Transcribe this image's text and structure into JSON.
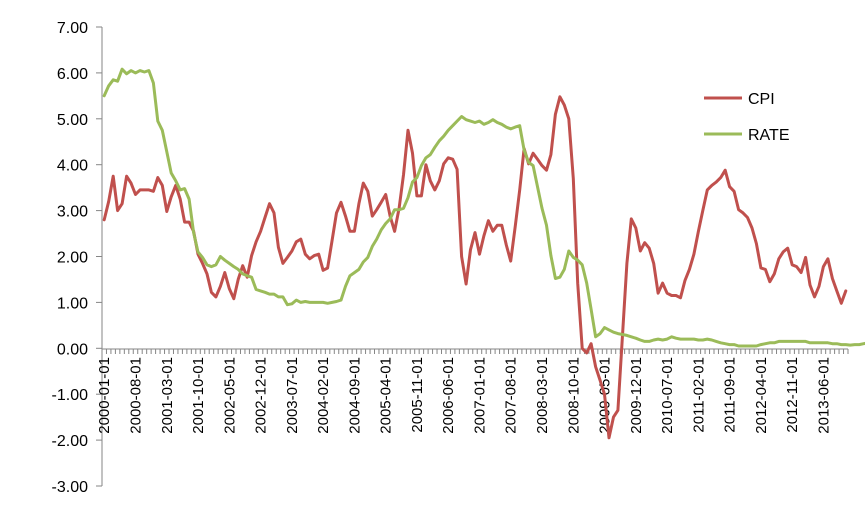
{
  "chart_data": {
    "type": "line",
    "title": "",
    "xlabel": "",
    "ylabel": "",
    "ylim": [
      -3,
      7
    ],
    "yticks": [
      "7.00",
      "6.00",
      "5.00",
      "4.00",
      "3.00",
      "2.00",
      "1.00",
      "0.00",
      "-1.00",
      "-2.00",
      "-3.00"
    ],
    "x_start": "2000-01",
    "x_tick_labels": [
      "2000-01-01",
      "2000-08-01",
      "2001-03-01",
      "2001-10-01",
      "2002-05-01",
      "2002-12-01",
      "2003-07-01",
      "2004-02-01",
      "2004-09-01",
      "2005-04-01",
      "2005-11-01",
      "2006-06-01",
      "2007-01-01",
      "2007-08-01",
      "2008-03-01",
      "2008-10-01",
      "2009-05-01",
      "2009-12-01",
      "2010-07-01",
      "2011-02-01",
      "2011-09-01",
      "2012-04-01",
      "2012-11-01",
      "2013-06-01"
    ],
    "legend_position": "right",
    "grid": false,
    "series": [
      {
        "name": "CPI",
        "color": "#c0504d",
        "values": [
          2.8,
          3.2,
          3.75,
          3.0,
          3.15,
          3.75,
          3.6,
          3.35,
          3.45,
          3.45,
          3.45,
          3.42,
          3.72,
          3.55,
          2.98,
          3.3,
          3.55,
          3.25,
          2.75,
          2.75,
          2.55,
          2.05,
          1.85,
          1.62,
          1.22,
          1.12,
          1.35,
          1.65,
          1.3,
          1.08,
          1.5,
          1.8,
          1.55,
          2.02,
          2.32,
          2.55,
          2.85,
          3.15,
          2.95,
          2.2,
          1.85,
          1.98,
          2.12,
          2.32,
          2.38,
          2.05,
          1.95,
          2.02,
          2.05,
          1.7,
          1.75,
          2.35,
          2.95,
          3.18,
          2.88,
          2.55,
          2.55,
          3.15,
          3.6,
          3.42,
          2.88,
          3.02,
          3.18,
          3.35,
          2.88,
          2.55,
          3.05,
          3.78,
          4.75,
          4.25,
          3.32,
          3.32,
          4.0,
          3.65,
          3.45,
          3.65,
          4.02,
          4.15,
          4.12,
          3.9,
          2.0,
          1.4,
          2.15,
          2.52,
          2.05,
          2.45,
          2.78,
          2.55,
          2.68,
          2.68,
          2.25,
          1.9,
          2.65,
          3.45,
          4.35,
          4.02,
          4.25,
          4.12,
          3.98,
          3.88,
          4.22,
          5.1,
          5.48,
          5.3,
          5.0,
          3.7,
          1.42,
          0.0,
          -0.1,
          0.1,
          -0.4,
          -0.7,
          -1.0,
          -1.95,
          -1.5,
          -1.35,
          0.25,
          1.85,
          2.82,
          2.62,
          2.12,
          2.3,
          2.18,
          1.85,
          1.2,
          1.42,
          1.2,
          1.15,
          1.15,
          1.1,
          1.48,
          1.72,
          2.05,
          2.55,
          3.0,
          3.45,
          3.55,
          3.62,
          3.72,
          3.88,
          3.52,
          3.42,
          3.02,
          2.95,
          2.85,
          2.62,
          2.28,
          1.75,
          1.72,
          1.45,
          1.62,
          1.95,
          2.1,
          2.18,
          1.82,
          1.78,
          1.65,
          1.98,
          1.38,
          1.12,
          1.35,
          1.78,
          1.95,
          1.52,
          1.25,
          0.98,
          1.25
        ]
      },
      {
        "name": "RATE",
        "color": "#9bbb59",
        "values": [
          5.5,
          5.72,
          5.85,
          5.82,
          6.08,
          5.98,
          6.05,
          6.0,
          6.05,
          6.02,
          6.05,
          5.78,
          4.95,
          4.75,
          4.28,
          3.82,
          3.65,
          3.45,
          3.48,
          3.25,
          2.52,
          2.1,
          1.98,
          1.82,
          1.78,
          1.82,
          2.0,
          1.92,
          1.85,
          1.78,
          1.72,
          1.62,
          1.58,
          1.55,
          1.28,
          1.25,
          1.22,
          1.18,
          1.18,
          1.12,
          1.12,
          0.95,
          0.97,
          1.05,
          1.0,
          1.02,
          1.0,
          1.0,
          1.0,
          1.0,
          0.98,
          1.0,
          1.02,
          1.05,
          1.35,
          1.58,
          1.65,
          1.72,
          1.88,
          1.98,
          2.22,
          2.38,
          2.58,
          2.72,
          2.82,
          3.02,
          3.02,
          3.05,
          3.28,
          3.62,
          3.72,
          3.98,
          4.15,
          4.22,
          4.38,
          4.52,
          4.62,
          4.75,
          4.85,
          4.95,
          5.05,
          4.98,
          4.95,
          4.92,
          4.95,
          4.88,
          4.92,
          4.98,
          4.92,
          4.88,
          4.82,
          4.78,
          4.82,
          4.85,
          4.32,
          4.05,
          3.98,
          3.52,
          3.05,
          2.68,
          2.02,
          1.52,
          1.55,
          1.72,
          2.12,
          1.98,
          1.92,
          1.82,
          1.42,
          0.85,
          0.25,
          0.32,
          0.45,
          0.4,
          0.35,
          0.32,
          0.3,
          0.28,
          0.25,
          0.22,
          0.18,
          0.15,
          0.15,
          0.18,
          0.2,
          0.18,
          0.2,
          0.25,
          0.22,
          0.2,
          0.2,
          0.2,
          0.2,
          0.18,
          0.18,
          0.2,
          0.18,
          0.15,
          0.12,
          0.1,
          0.08,
          0.08,
          0.05,
          0.05,
          0.05,
          0.05,
          0.05,
          0.08,
          0.1,
          0.12,
          0.12,
          0.15,
          0.15,
          0.15,
          0.15,
          0.15,
          0.15,
          0.15,
          0.12,
          0.12,
          0.12,
          0.12,
          0.12,
          0.1,
          0.1,
          0.08,
          0.08,
          0.07,
          0.08,
          0.08,
          0.1,
          0.12
        ]
      }
    ]
  }
}
